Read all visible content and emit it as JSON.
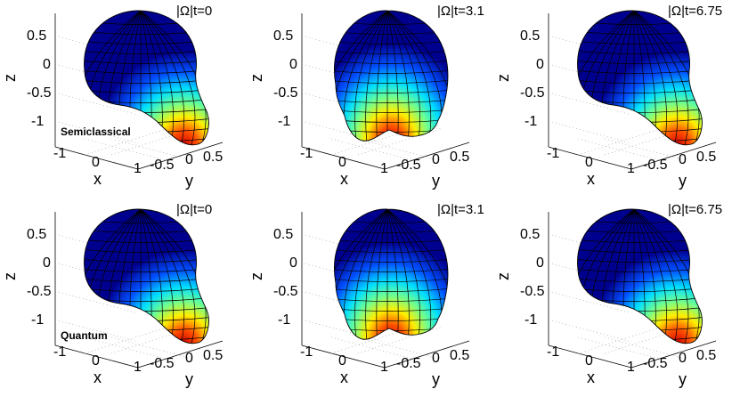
{
  "panels": [
    {
      "title": "|Ω|t=0",
      "tag": "Semiclassical",
      "shape": "tail-right"
    },
    {
      "title": "|Ω|t=3.1",
      "tag": "",
      "shape": "two-lobe"
    },
    {
      "title": "|Ω|t=6.75",
      "tag": "",
      "shape": "tail-right"
    },
    {
      "title": "|Ω|t=0",
      "tag": "Quantum",
      "shape": "tail-right"
    },
    {
      "title": "|Ω|t=3.1",
      "tag": "",
      "shape": "two-lobe"
    },
    {
      "title": "|Ω|t=6.75",
      "tag": "",
      "shape": "tail-right"
    }
  ],
  "axes": {
    "xlabel": "x",
    "ylabel": "y",
    "zlabel": "z",
    "x_ticks": [
      "-1",
      "0",
      "1"
    ],
    "y_ticks": [
      "-0.5",
      "0",
      "0.5"
    ],
    "z_ticks_a": [
      "0.5",
      "0",
      "-0.5",
      "-1"
    ],
    "z_ticks_b": [
      "0.5",
      "0",
      "-0.5",
      "-1"
    ]
  },
  "colors": {
    "sphere": "#00008f",
    "colormap": [
      "#00008f",
      "#0050ff",
      "#00dfff",
      "#70ff8f",
      "#ffef00",
      "#ff5000",
      "#d00000"
    ]
  }
}
